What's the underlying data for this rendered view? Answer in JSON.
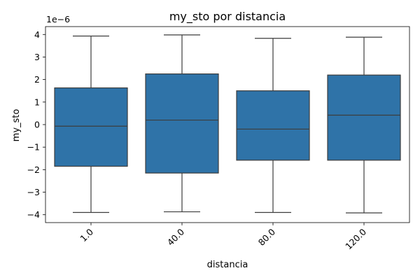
{
  "chart_data": {
    "type": "box",
    "title": "my_sto por distancia",
    "xlabel": "distancia",
    "ylabel": "my_sto",
    "y_scale_label": "1e−6",
    "y_scale": 1e-06,
    "ylim": [
      -4.35,
      4.35
    ],
    "yticks": [
      -4,
      -3,
      -2,
      -1,
      0,
      1,
      2,
      3,
      4
    ],
    "ytick_labels": [
      "−4",
      "−3",
      "−2",
      "−1",
      "0",
      "1",
      "2",
      "3",
      "4"
    ],
    "categories": [
      "1.0",
      "40.0",
      "80.0",
      "120.0"
    ],
    "box_color": "#2f73a8",
    "line_color": "#3d3d3d",
    "boxes": [
      {
        "category": "1.0",
        "whisker_low": -3.9,
        "q1": -1.85,
        "median": -0.07,
        "q3": 1.63,
        "whisker_high": 3.93
      },
      {
        "category": "40.0",
        "whisker_low": -3.87,
        "q1": -2.15,
        "median": 0.2,
        "q3": 2.25,
        "whisker_high": 3.98
      },
      {
        "category": "80.0",
        "whisker_low": -3.9,
        "q1": -1.58,
        "median": -0.2,
        "q3": 1.5,
        "whisker_high": 3.83
      },
      {
        "category": "120.0",
        "whisker_low": -3.92,
        "q1": -1.58,
        "median": 0.42,
        "q3": 2.2,
        "whisker_high": 3.88
      }
    ]
  }
}
